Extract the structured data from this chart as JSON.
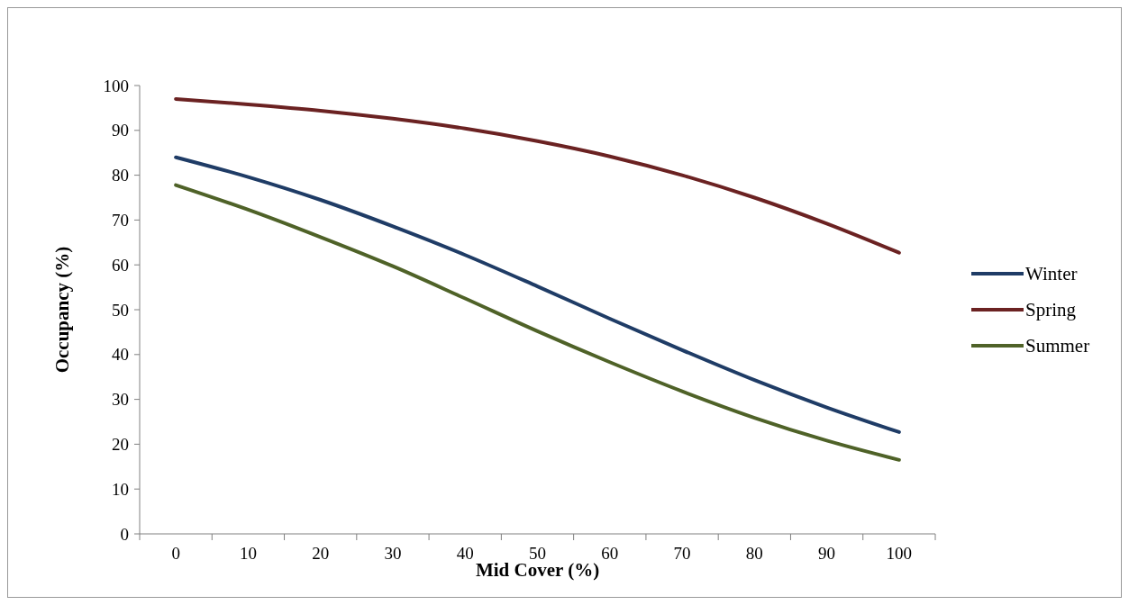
{
  "chart_data": {
    "type": "line",
    "xlabel": "Mid Cover (%)",
    "ylabel": "Occupancy (%)",
    "categories": [
      "0",
      "10",
      "20",
      "30",
      "40",
      "50",
      "60",
      "70",
      "80",
      "90",
      "100"
    ],
    "ylim": [
      0,
      100
    ],
    "yticks": [
      0,
      10,
      20,
      30,
      40,
      50,
      60,
      70,
      80,
      90,
      100
    ],
    "legend": "right",
    "grid": false,
    "marker": "none",
    "line_style": "solid",
    "series": [
      {
        "name": "Winter",
        "color": "#1f3c66",
        "values": [
          84,
          79.6,
          74.5,
          68.6,
          62.2,
          55.2,
          48,
          41,
          34.3,
          28.2,
          22.7
        ]
      },
      {
        "name": "Spring",
        "color": "#6b2222",
        "values": [
          97,
          95.8,
          94.4,
          92.6,
          90.4,
          87.6,
          84.2,
          80,
          75,
          69.2,
          62.7
        ]
      },
      {
        "name": "Summer",
        "color": "#4f6228",
        "values": [
          77.8,
          72.3,
          66.2,
          59.7,
          52.5,
          45.2,
          38.3,
          31.8,
          25.9,
          20.8,
          16.5
        ]
      }
    ]
  }
}
